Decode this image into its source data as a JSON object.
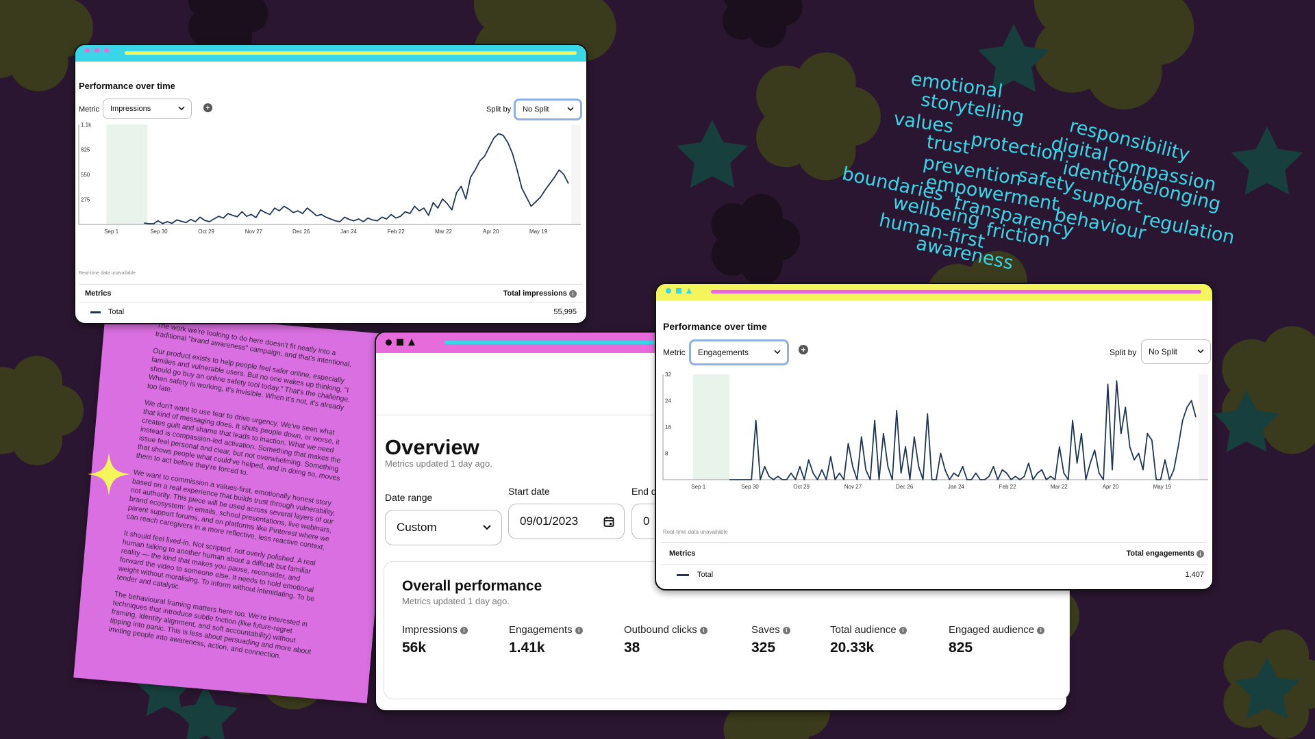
{
  "colors": {
    "background": "#2a1630",
    "flower": "#3a3a1c",
    "star": "#173f3d",
    "accent_cyan": "#38d6e6",
    "accent_pink": "#e86bdc",
    "accent_yellow": "#f4f55a",
    "line": "#1e3554",
    "shade": "#e8f3ec"
  },
  "window1": {
    "title": "Performance over time",
    "metric_label": "Metric",
    "metric_value": "Impressions",
    "split_label": "Split by",
    "split_value": "No Split",
    "realtime_note": "Real-time data unavailable",
    "metrics_header": "Metrics",
    "metrics_right": "Total impressions",
    "total_label": "Total",
    "total_value": "55,995"
  },
  "window3": {
    "title": "Performance over time",
    "metric_label": "Metric",
    "metric_value": "Engagements",
    "split_label": "Split by",
    "split_value": "No Split",
    "realtime_note": "Real-time data unavailable",
    "metrics_header": "Metrics",
    "metrics_right": "Total engagements",
    "total_label": "Total",
    "total_value": "1,407"
  },
  "overview": {
    "title": "Overview",
    "updated": "Metrics updated 1 day ago.",
    "date_range_label": "Date range",
    "date_range_value": "Custom",
    "start_date_label": "Start date",
    "start_date_value": "09/01/2023",
    "end_date_label": "End d",
    "end_date_value": "0",
    "perf_title": "Overall performance",
    "perf_updated": "Metrics updated 1 day ago.",
    "kpis": [
      {
        "label": "Impressions",
        "value": "56k"
      },
      {
        "label": "Engagements",
        "value": "1.41k"
      },
      {
        "label": "Outbound clicks",
        "value": "38"
      },
      {
        "label": "Saves",
        "value": "325"
      },
      {
        "label": "Total audience",
        "value": "20.33k"
      },
      {
        "label": "Engaged audience",
        "value": "825"
      }
    ]
  },
  "wordcloud": [
    "emotional",
    "storytelling",
    "values",
    "responsibility",
    "trust",
    "protection",
    "digital",
    "compassion",
    "prevention",
    "identity",
    "belonging",
    "boundaries",
    "empowerment",
    "safety",
    "support",
    "regulation",
    "wellbeing",
    "transparency",
    "behaviour",
    "human-first",
    "friction",
    "awareness"
  ],
  "brief": [
    "The work we're looking to do here doesn't fit neatly into a traditional \"brand awareness\" campaign, and that's intentional.",
    "Our product exists to help people feel safer online, especially families and vulnerable users. But no one wakes up thinking, \"I should go buy an online safety tool today.\" That's the challenge. When safety is working, it's invisible. When it's not, it's already too late.",
    "We don't want to use fear to drive urgency. We've seen what that kind of messaging does. It shuts people down, or worse, it creates guilt and shame that leads to inaction. What we need instead is compassion-led activation. Something that makes the issue feel personal and clear, but not overwhelming. Something that shows people what could've helped, and in doing so, moves them to act before they're forced to.",
    "We want to commission a values-first, emotionally honest story based on a real experience that builds trust through vulnerability, not authority. This piece will be used across several layers of our brand ecosystem: in emails, school presentations, live webinars, parent support forums, and on platforms like Pinterest where we can reach caregivers in a more reflective, less reactive context.",
    "It should feel lived-in. Not scripted, not overly polished. A real human talking to another human about a difficult but familiar reality — the kind that makes you pause, reconsider, and forward the video to someone else. It needs to hold emotional weight without moralising. To inform without intimidating. To be tender and catalytic.",
    "The behavioural framing matters here too. We're interested in techniques that introduce subtle friction (like future-regret framing, identity alignment, and soft accountability) without tipping into panic. This is less about persuading and more about inviting people into awareness, action, and connection."
  ],
  "chart_data": [
    {
      "type": "line",
      "title": "Performance over time",
      "series": [
        {
          "name": "Total",
          "values": [
            15,
            8,
            6,
            40,
            10,
            30,
            12,
            50,
            35,
            20,
            55,
            30,
            80,
            45,
            30,
            60,
            90,
            70,
            120,
            100,
            85,
            140,
            90,
            110,
            75,
            160,
            130,
            110,
            180,
            150,
            200,
            170,
            130,
            150,
            120,
            180,
            140,
            95,
            110,
            80,
            60,
            40,
            30,
            80,
            55,
            40,
            60,
            30,
            70,
            50,
            40,
            80,
            60,
            110,
            70,
            90,
            140,
            120,
            200,
            150,
            180,
            100,
            240,
            180,
            280,
            230,
            160,
            350,
            420,
            280,
            520,
            600,
            700,
            750,
            850,
            950,
            1000,
            980,
            900,
            780,
            600,
            400,
            300,
            200,
            250,
            300,
            380,
            450,
            520,
            600,
            550,
            450
          ]
        }
      ],
      "x_tick_labels": [
        "Sep 1",
        "Sep 30",
        "Oct 29",
        "Nov 27",
        "Dec 26",
        "Jan 24",
        "Feb 22",
        "Mar 22",
        "Apr 20",
        "May 19"
      ],
      "y_tick_labels": [
        "275",
        "550",
        "825",
        "1.1k"
      ],
      "ylim": [
        0,
        1100
      ]
    },
    {
      "type": "line",
      "title": "Performance over time",
      "series": [
        {
          "name": "Total",
          "values": [
            0,
            0,
            0,
            0,
            0,
            0,
            18,
            0,
            4,
            1,
            0,
            1,
            0,
            0,
            2,
            0,
            4,
            0,
            6,
            2,
            0,
            3,
            0,
            7,
            0,
            2,
            0,
            11,
            4,
            0,
            13,
            3,
            0,
            18,
            0,
            14,
            4,
            0,
            21,
            2,
            10,
            0,
            13,
            4,
            0,
            20,
            0,
            0,
            8,
            3,
            0,
            2,
            1,
            4,
            0,
            0,
            2,
            0,
            0,
            1,
            4,
            0,
            3,
            2,
            0,
            1,
            0,
            1,
            5,
            0,
            2,
            3,
            0,
            1,
            0,
            10,
            2,
            0,
            18,
            5,
            14,
            0,
            5,
            9,
            2,
            0,
            29,
            3,
            30,
            14,
            22,
            10,
            6,
            8,
            3,
            14,
            12,
            0,
            0,
            6,
            0,
            3,
            10,
            18,
            22,
            24,
            19
          ]
        }
      ],
      "x_tick_labels": [
        "Sep 1",
        "Sep 30",
        "Oct 29",
        "Nov 27",
        "Dec 26",
        "Jan 24",
        "Feb 22",
        "Mar 22",
        "Apr 20",
        "May 19"
      ],
      "y_tick_labels": [
        "8",
        "16",
        "24",
        "32"
      ],
      "ylim": [
        0,
        32
      ]
    }
  ]
}
